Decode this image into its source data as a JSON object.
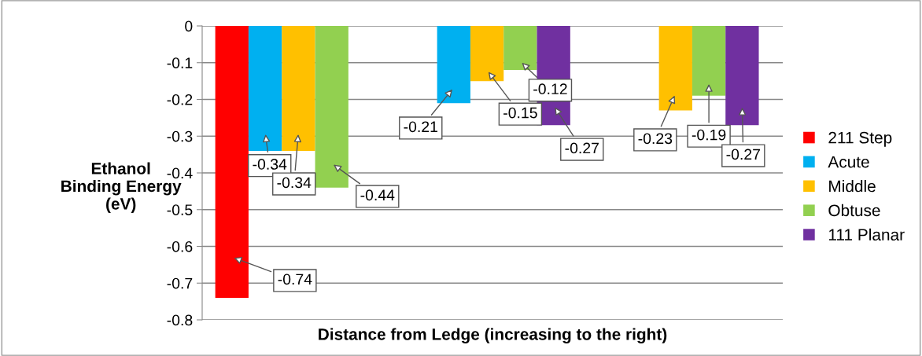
{
  "chart_data": {
    "type": "bar",
    "xlabel": "Distance from Ledge (increasing to the right)",
    "ylabel": "Ethanol\nBinding Energy\n(eV)",
    "categories": [
      null,
      null,
      null
    ],
    "series": [
      {
        "name": "211 Step",
        "color": "#ff0000",
        "values": [
          -0.74,
          null,
          null
        ]
      },
      {
        "name": "Acute",
        "color": "#00b0f0",
        "values": [
          -0.34,
          -0.21,
          null
        ]
      },
      {
        "name": "Middle",
        "color": "#ffc000",
        "values": [
          -0.34,
          -0.15,
          -0.23
        ]
      },
      {
        "name": "Obtuse",
        "color": "#92d050",
        "values": [
          -0.44,
          -0.12,
          -0.19
        ]
      },
      {
        "name": "111 Planar",
        "color": "#7030a0",
        "values": [
          null,
          -0.27,
          -0.27
        ]
      }
    ],
    "ylim": [
      -0.8,
      0
    ],
    "yticks": [
      -0.8,
      -0.7,
      -0.6,
      -0.5,
      -0.4,
      -0.3,
      -0.2,
      -0.1,
      0
    ],
    "grid": "y",
    "legend": "right",
    "data_labels": true
  }
}
